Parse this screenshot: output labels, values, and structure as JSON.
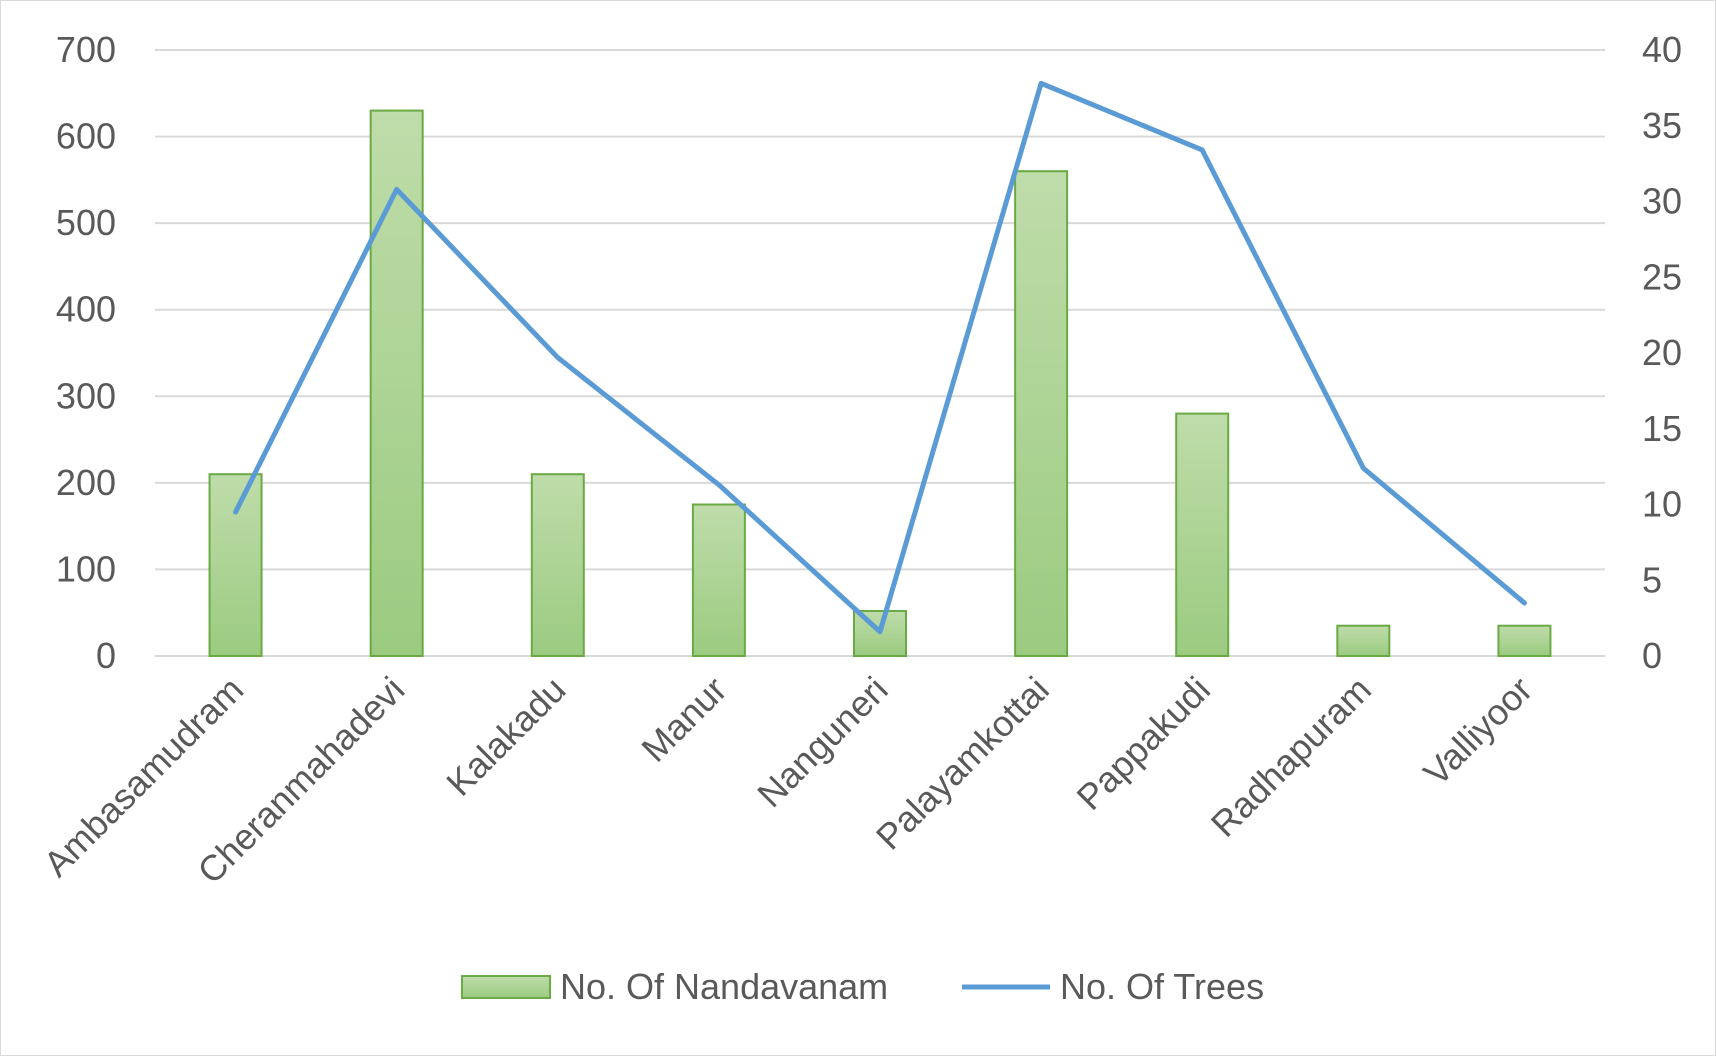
{
  "chart_data": {
    "type": "bar",
    "categories": [
      "Ambasamudram",
      "Cheranmahadevi",
      "Kalakadu",
      "Manur",
      "Nanguneri",
      "Palayamkottai",
      "Pappakudi",
      "Radhapuram",
      "Valliyoor"
    ],
    "series": [
      {
        "name": "No. Of Nandavanam",
        "type": "bar",
        "axis": "left",
        "values": [
          210,
          630,
          210,
          175,
          52,
          560,
          280,
          35,
          35
        ]
      },
      {
        "name": "No. Of Trees",
        "type": "line",
        "axis": "right",
        "values": [
          9.5,
          30.8,
          19.7,
          11.3,
          1.6,
          37.8,
          33.4,
          12.4,
          3.5
        ]
      }
    ],
    "y_left": {
      "min": 0,
      "max": 700,
      "step": 100,
      "ticks": [
        "0",
        "100",
        "200",
        "300",
        "400",
        "500",
        "600",
        "700"
      ]
    },
    "y_right": {
      "min": 0,
      "max": 40,
      "step": 5,
      "ticks": [
        "0",
        "5",
        "10",
        "15",
        "20",
        "25",
        "30",
        "35",
        "40"
      ]
    },
    "title": "",
    "xlabel": "",
    "ylabel": "",
    "grid": true,
    "legend_position": "bottom",
    "colors": {
      "bar_fill_top": "#bfdcaa",
      "bar_fill_bottom": "#9bcb80",
      "bar_stroke": "#6aaa45",
      "line": "#5b9bd5",
      "grid": "#d9d9d9",
      "text": "#595959"
    }
  }
}
